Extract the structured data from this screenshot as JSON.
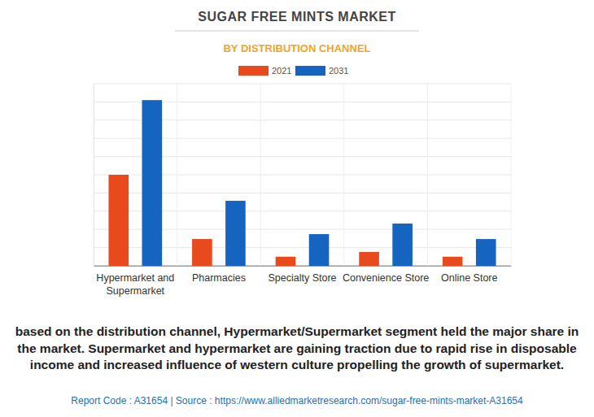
{
  "chart_data": {
    "type": "bar",
    "title": "SUGAR FREE MINTS MARKET",
    "subtitle": "BY DISTRIBUTION CHANNEL",
    "categories": [
      "Hypermarket and Supermarket",
      "Pharmacies",
      "Specialty Store",
      "Convenience Store",
      "Online Store"
    ],
    "series": [
      {
        "name": "2021",
        "color": "#e8491d",
        "values": [
          5.0,
          1.47,
          0.5,
          0.76,
          0.5
        ]
      },
      {
        "name": "2031",
        "color": "#1565c0",
        "values": [
          9.1,
          3.57,
          1.74,
          2.32,
          1.47
        ]
      }
    ],
    "ylim": [
      0,
      10
    ],
    "yticks": [
      0,
      1,
      2,
      3,
      4,
      5,
      6,
      7,
      8,
      9,
      10
    ],
    "grid": true,
    "legend": "top",
    "tick_labels": "x",
    "annotations": [
      "based on the distribution channel, Hypermarket/Supermarket segment held the major share in the market. Supermarket and hypermarket are gaining traction due to rapid rise in disposable income and increased influence of western culture propelling the growth of supermarket.",
      "Report Code : A31654  |  Source : https://www.alliedmarketresearch.com/sugar-free-mints-market-A31654"
    ]
  }
}
